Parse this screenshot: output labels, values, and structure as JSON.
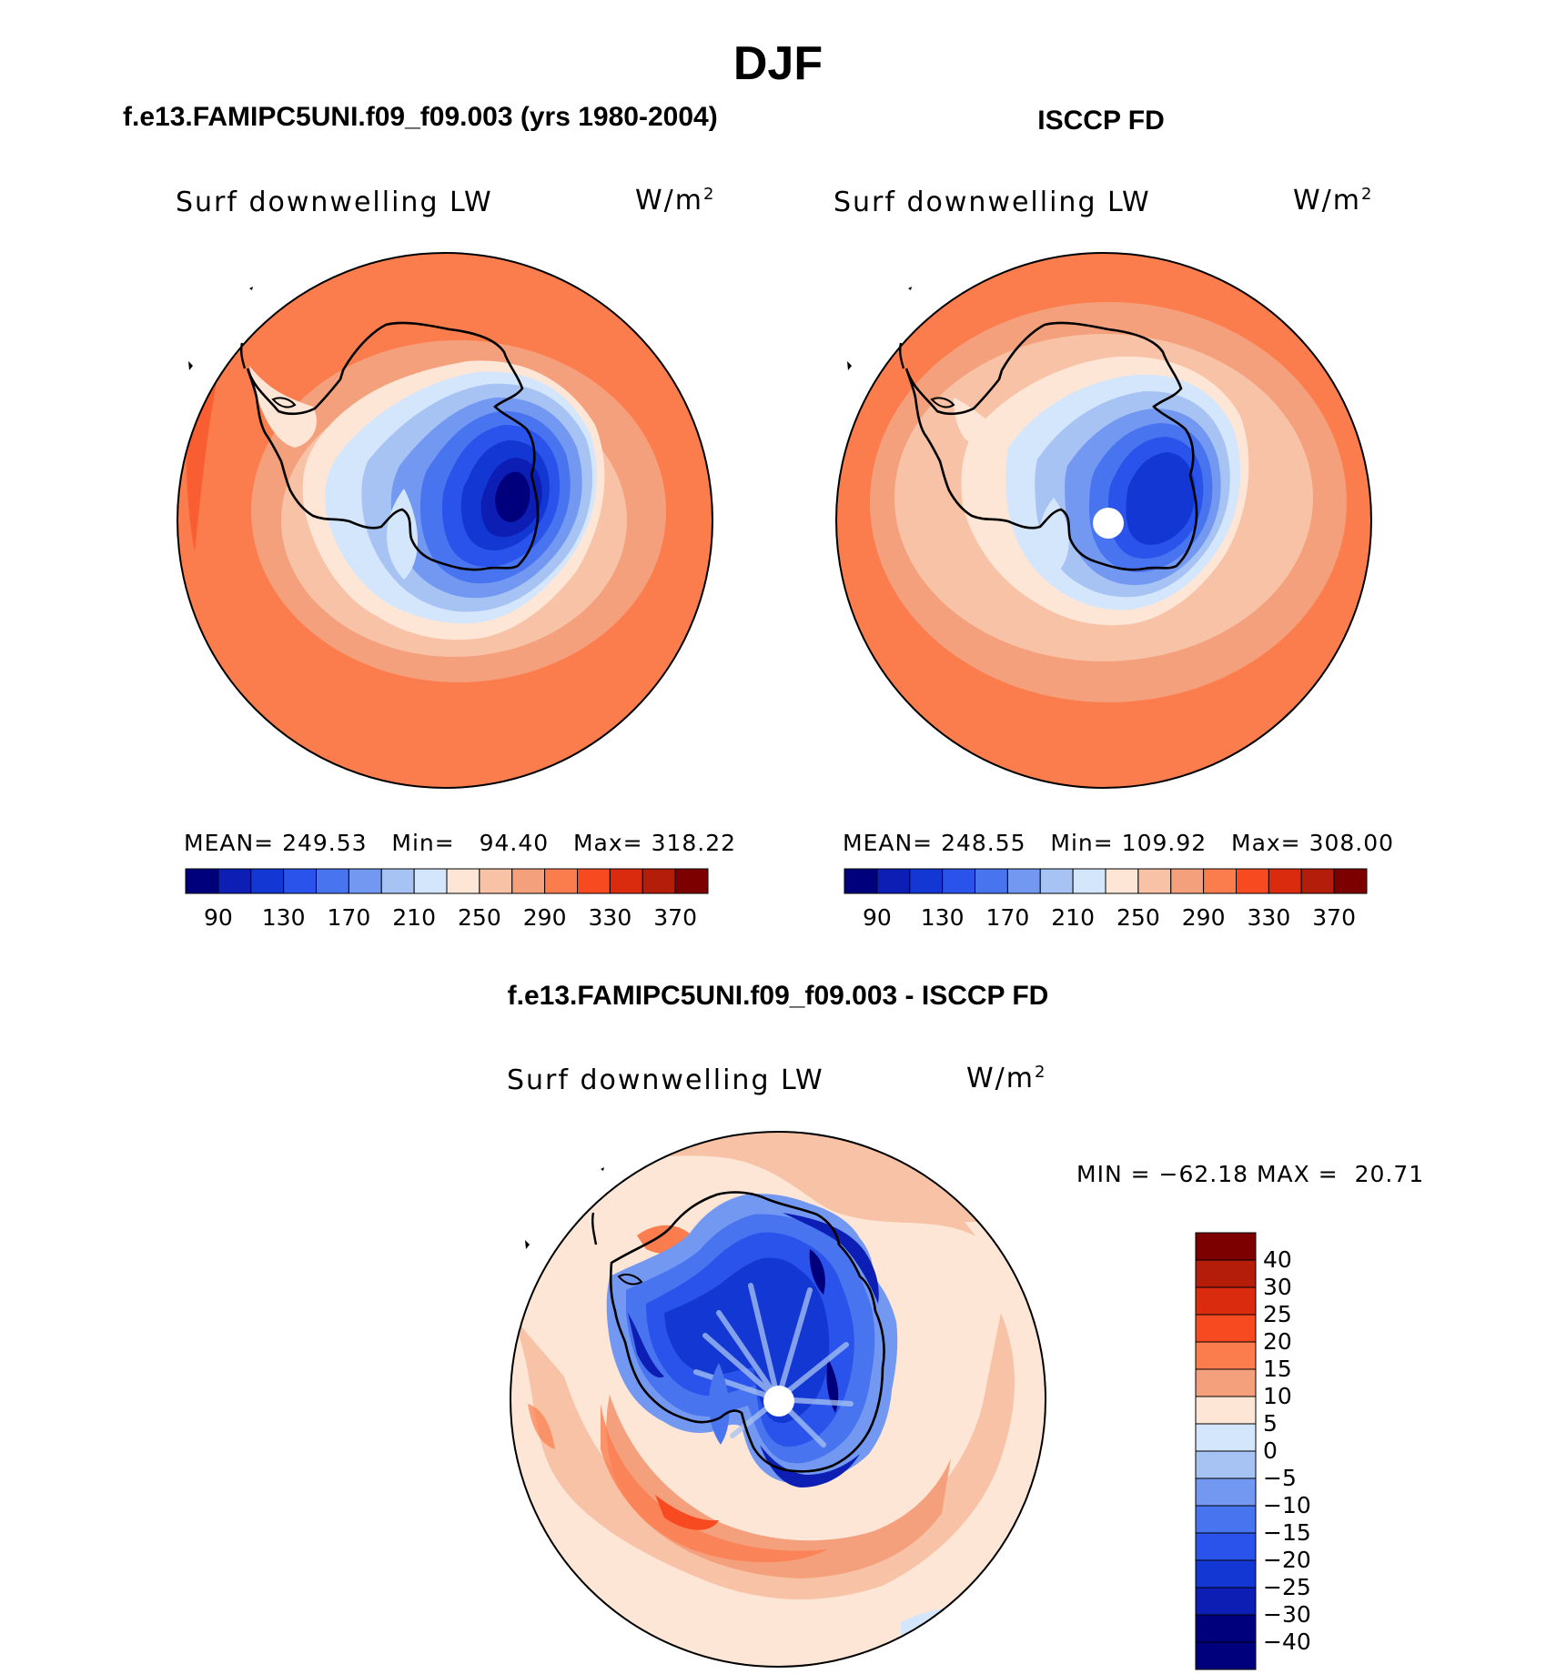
{
  "figure": {
    "season": "DJF",
    "left_title": "f.e13.FAMIPC5UNI.f09_f09.003 (yrs 1980-2004)",
    "right_title": "ISCCP FD",
    "diff_title": "f.e13.FAMIPC5UNI.f09_f09.003 - ISCCP FD"
  },
  "panels": {
    "model": {
      "variable": "Surf downwelling LW",
      "units": "W/m",
      "units_sup": "2",
      "mean_label": "MEAN=",
      "mean": "249.53",
      "min_label": "Min=",
      "min": "94.40",
      "max_label": "Max=",
      "max": "318.22"
    },
    "obs": {
      "variable": "Surf downwelling LW",
      "units": "W/m",
      "units_sup": "2",
      "mean_label": "MEAN=",
      "mean": "248.55",
      "min_label": "Min=",
      "min": "109.92",
      "max_label": "Max=",
      "max": "308.00"
    },
    "diff": {
      "variable": "Surf downwelling LW",
      "units": "W/m",
      "units_sup": "2",
      "min_label": "MIN =",
      "min": "−62.18",
      "max_label": "MAX =",
      "max": "20.71"
    }
  },
  "colorbar_main": {
    "colors": [
      "#00007d",
      "#0d1eb4",
      "#1337d3",
      "#2953ea",
      "#4874ef",
      "#7298f2",
      "#a7c3f3",
      "#d4e6fb",
      "#fde6d6",
      "#f8c2a6",
      "#f5a07c",
      "#fb7d4e",
      "#f84a20",
      "#db2b0e",
      "#b51d0b",
      "#7d0000"
    ],
    "tick_labels": [
      "90",
      "130",
      "170",
      "210",
      "250",
      "290",
      "330",
      "370"
    ]
  },
  "colorbar_diff": {
    "colors": [
      "#7d0000",
      "#b51d0b",
      "#db2b0e",
      "#f84a20",
      "#fb7d4e",
      "#f5a07c",
      "#fde6d6",
      "#d4e6fb",
      "#a7c3f3",
      "#7298f2",
      "#4874ef",
      "#2953ea",
      "#1337d3",
      "#0d1eb4",
      "#00007d"
    ],
    "tick_labels": [
      "40",
      "30",
      "25",
      "20",
      "15",
      "10",
      "5",
      "0",
      "−5",
      "−10",
      "−15",
      "−20",
      "−25",
      "−30",
      "−40"
    ]
  }
}
